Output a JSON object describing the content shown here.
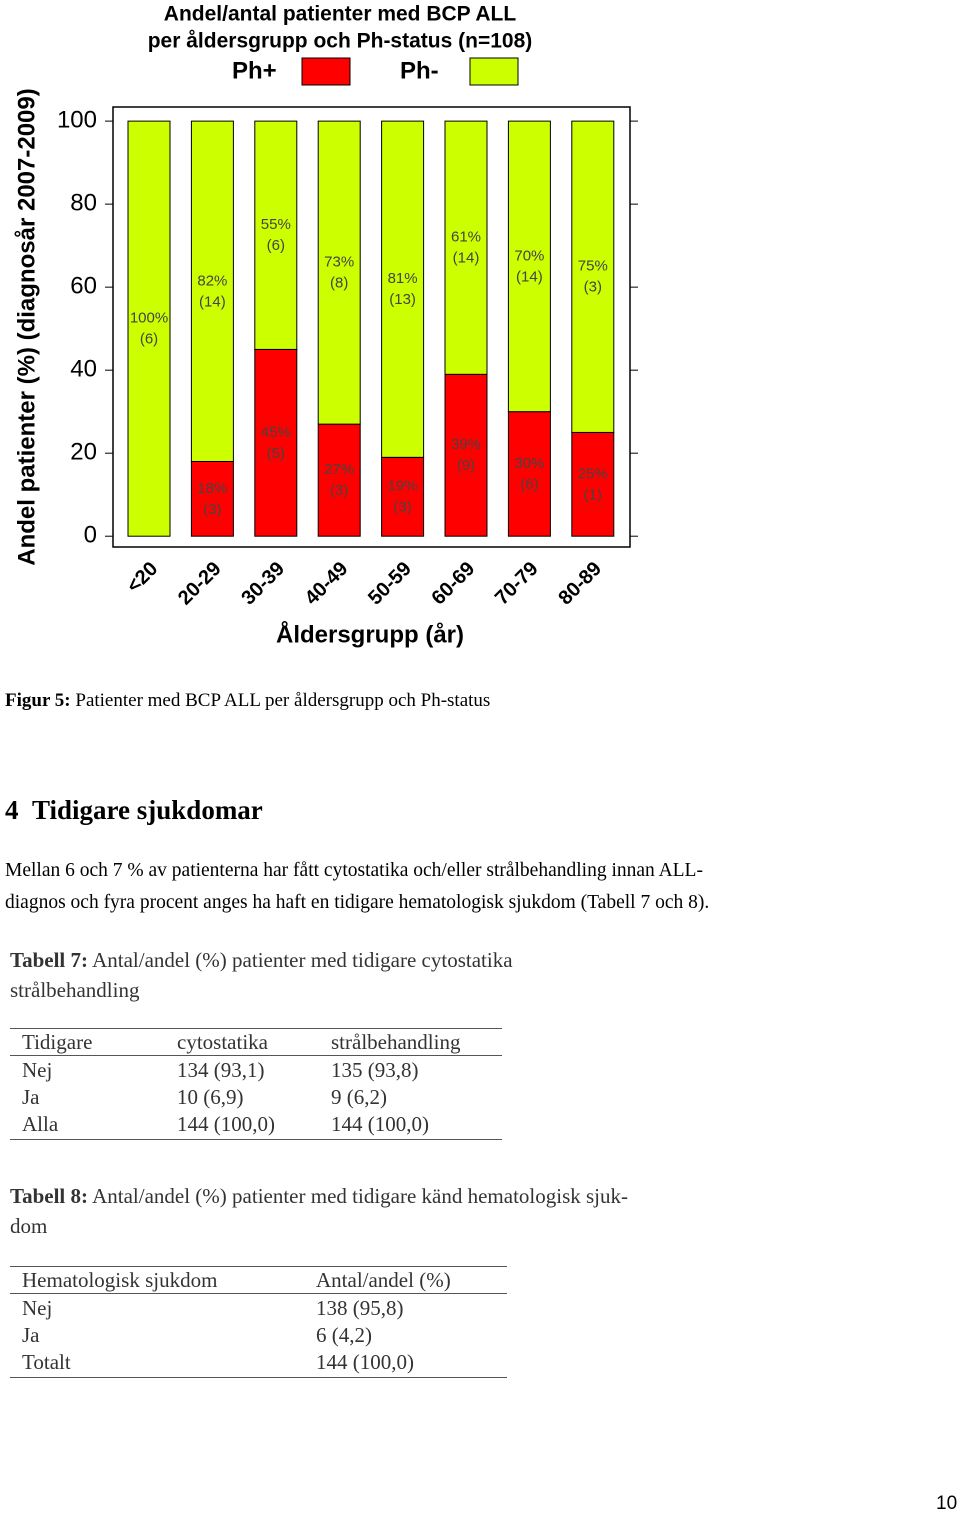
{
  "chart_data": {
    "type": "stacked_bar",
    "title": [
      "Andel/antal patienter med BCP ALL",
      "per åldersgrupp och Ph-status (n=108)"
    ],
    "y_label": "Andel patienter (%) (diagnosår 2007-2009)",
    "x_label": "Åldersgrupp (år)",
    "categories": [
      "<20",
      "20-29",
      "30-39",
      "40-49",
      "50-59",
      "60-69",
      "70-79",
      "80-89"
    ],
    "series": [
      {
        "name": "Ph+",
        "color": "#ff0000",
        "values": [
          0,
          18,
          45,
          27,
          19,
          39,
          30,
          25
        ],
        "value_labels": [
          null,
          "18%",
          "45%",
          "27%",
          "19%",
          "39%",
          "30%",
          "25%"
        ],
        "counts": [
          null,
          3,
          5,
          3,
          3,
          9,
          6,
          1
        ],
        "count_labels": [
          null,
          "(3)",
          "(5)",
          "(3)",
          "(3)",
          "(9)",
          "(6)",
          "(1)"
        ]
      },
      {
        "name": "Ph-",
        "color": "#ccff00",
        "values": [
          100,
          82,
          55,
          73,
          81,
          61,
          70,
          75
        ],
        "value_labels": [
          "100%",
          "82%",
          "55%",
          "73%",
          "81%",
          "61%",
          "70%",
          "75%"
        ],
        "counts": [
          6,
          14,
          6,
          8,
          13,
          14,
          14,
          3
        ],
        "count_labels": [
          "(6)",
          "(14)",
          "(6)",
          "(8)",
          "(13)",
          "(14)",
          "(14)",
          "(3)"
        ]
      }
    ],
    "ylim": [
      -2.6,
      103.4
    ],
    "yticks": [
      0,
      20,
      40,
      60,
      80,
      100
    ],
    "legend": "top"
  },
  "figure_caption": {
    "label": "Figur 5:",
    "text": "Patienter med BCP ALL per åldersgrupp och Ph-status"
  },
  "section": {
    "number": "4",
    "title": "Tidigare sjukdomar",
    "paragraph": [
      "Mellan 6 och 7 % av patienterna har fått cytostatika och/eller strålbehandling innan ALL-",
      "diagnos och fyra procent anges ha haft en tidigare hematologisk sjukdom (Tabell 7 och 8)."
    ]
  },
  "tables": [
    {
      "label": "Tabell 7:",
      "caption": [
        "Antal/andel (%) patienter med tidigare cytostatika",
        "strålbehandling"
      ],
      "header": [
        "Tidigare",
        "cytostatika",
        "strålbehandling"
      ],
      "rows": [
        [
          "Nej",
          "134 (93,1)",
          "135 (93,8)"
        ],
        [
          "Ja",
          "10 (6,9)",
          "9 (6,2)"
        ],
        [
          "Alla",
          "144 (100,0)",
          "144 (100,0)"
        ]
      ]
    },
    {
      "label": "Tabell 8:",
      "caption": [
        "Antal/andel (%) patienter med tidigare känd hematologisk sjuk-",
        "dom"
      ],
      "header": [
        "Hematologisk sjukdom",
        "Antal/andel (%)"
      ],
      "rows": [
        [
          "Nej",
          "138 (95,8)"
        ],
        [
          "Ja",
          "6 (4,2)"
        ],
        [
          "Totalt",
          "144 (100,0)"
        ]
      ]
    }
  ],
  "page_number": "10"
}
